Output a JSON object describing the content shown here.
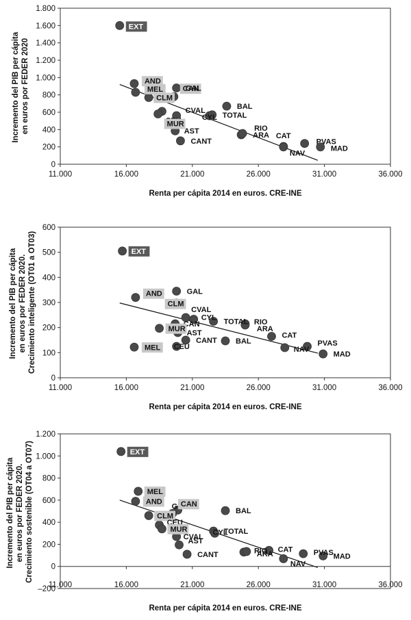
{
  "chart_data": [
    {
      "type": "scatter",
      "title": "",
      "xlabel": "Renta per cápita 2014 en euros. CRE-INE",
      "ylabel_lines": [
        "Incremento del PIB per cápita",
        "en euros por FEDER 2020"
      ],
      "xlim": [
        11000,
        36000
      ],
      "ylim": [
        0,
        1800
      ],
      "xticks": [
        11000,
        16000,
        21000,
        26000,
        31000,
        36000
      ],
      "xtick_labels": [
        "11.000",
        "16.000",
        "21.000",
        "26.000",
        "31.000",
        "36.000"
      ],
      "yticks": [
        0,
        200,
        400,
        600,
        800,
        1000,
        1200,
        1400,
        1600,
        1800
      ],
      "ytick_labels": [
        "0",
        "200",
        "400",
        "600",
        "800",
        "1.000",
        "1.200",
        "1.400",
        "1.600",
        "1.800"
      ],
      "trendline": {
        "x": [
          15500,
          30500
        ],
        "y": [
          920,
          45
        ]
      },
      "points": [
        {
          "label": "EXT",
          "x": 15500,
          "y": 1600,
          "style": "dark",
          "dx": 12,
          "dy": 1
        },
        {
          "label": "AND",
          "x": 16600,
          "y": 930,
          "style": "box",
          "dx": 14,
          "dy": -4
        },
        {
          "label": "MEL",
          "x": 16700,
          "y": 830,
          "style": "box",
          "dx": 16,
          "dy": -5
        },
        {
          "label": "CLM",
          "x": 17700,
          "y": 770,
          "style": "box",
          "dx": 10,
          "dy": 0
        },
        {
          "label": "CAN",
          "x": 19600,
          "y": 780,
          "style": "box",
          "dx": 12,
          "dy": -12
        },
        {
          "label": "GAL",
          "x": 19800,
          "y": 880,
          "style": "plain",
          "dx": 12,
          "dy": 0
        },
        {
          "label": "CEU",
          "x": 18700,
          "y": 610,
          "style": "plain",
          "dx": 4,
          "dy": 13
        },
        {
          "label": "CVAL",
          "x": 19800,
          "y": 560,
          "style": "plain",
          "dx": 12,
          "dy": -8
        },
        {
          "label": "MUR",
          "x": 18400,
          "y": 580,
          "style": "box",
          "dx": 12,
          "dy": 14
        },
        {
          "label": "CYL",
          "x": 22300,
          "y": 560,
          "style": "plain",
          "dx": -12,
          "dy": 2
        },
        {
          "label": "TOTAL",
          "x": 22500,
          "y": 570,
          "style": "plain",
          "dx": 14,
          "dy": 0
        },
        {
          "label": "BAL",
          "x": 23600,
          "y": 670,
          "style": "plain",
          "dx": 14,
          "dy": 0
        },
        {
          "label": "AST",
          "x": 19700,
          "y": 385,
          "style": "plain",
          "dx": 12,
          "dy": 0
        },
        {
          "label": "CANT",
          "x": 20100,
          "y": 270,
          "style": "plain",
          "dx": 14,
          "dy": 0
        },
        {
          "label": "ARA",
          "x": 24700,
          "y": 340,
          "style": "plain",
          "dx": 16,
          "dy": 0
        },
        {
          "label": "RIO",
          "x": 24800,
          "y": 355,
          "style": "plain",
          "dx": 16,
          "dy": -8
        },
        {
          "label": "CAT",
          "x": 27900,
          "y": 205,
          "style": "plain",
          "dx": -12,
          "dy": -16
        },
        {
          "label": "NAV",
          "x": 27900,
          "y": 200,
          "style": "plain",
          "dx": 8,
          "dy": 9
        },
        {
          "label": "PVAS",
          "x": 29500,
          "y": 240,
          "style": "plain",
          "dx": 16,
          "dy": -3
        },
        {
          "label": "MAD",
          "x": 30700,
          "y": 200,
          "style": "plain",
          "dx": 14,
          "dy": 2
        }
      ]
    },
    {
      "type": "scatter",
      "title": "",
      "xlabel": "Renta per cápita 2014 en euros. CRE-INE",
      "ylabel_lines": [
        "Incremento del PIB per cápita",
        "en euros por FEDER 2020.",
        "Crecimiento inteligente (OT01 a OT03)"
      ],
      "xlim": [
        11000,
        36000
      ],
      "ylim": [
        0,
        600
      ],
      "xticks": [
        11000,
        16000,
        21000,
        26000,
        31000,
        36000
      ],
      "xtick_labels": [
        "11.000",
        "16.000",
        "21.000",
        "26.000",
        "31.000",
        "36.000"
      ],
      "yticks": [
        0,
        100,
        200,
        300,
        400,
        500,
        600
      ],
      "ytick_labels": [
        "0",
        "100",
        "200",
        "300",
        "400",
        "500",
        "600"
      ],
      "trendline": {
        "x": [
          15500,
          30500
        ],
        "y": [
          298,
          98
        ]
      },
      "points": [
        {
          "label": "EXT",
          "x": 15700,
          "y": 505,
          "style": "dark",
          "dx": 12,
          "dy": 0
        },
        {
          "label": "AND",
          "x": 16700,
          "y": 320,
          "style": "box",
          "dx": 14,
          "dy": -6
        },
        {
          "label": "CLM",
          "x": 19800,
          "y": 298,
          "style": "box",
          "dx": -14,
          "dy": 1
        },
        {
          "label": "GAL",
          "x": 19800,
          "y": 345,
          "style": "plain",
          "dx": 14,
          "dy": 0
        },
        {
          "label": "CVAL",
          "x": 20500,
          "y": 240,
          "style": "plain",
          "dx": 7,
          "dy": -12
        },
        {
          "label": "CYL",
          "x": 21100,
          "y": 233,
          "style": "plain",
          "dx": 10,
          "dy": -3
        },
        {
          "label": "TOTAL",
          "x": 22600,
          "y": 225,
          "style": "plain",
          "dx": 14,
          "dy": 0
        },
        {
          "label": "RIO",
          "x": 25000,
          "y": 215,
          "style": "plain",
          "dx": 12,
          "dy": -3
        },
        {
          "label": "ARA",
          "x": 25000,
          "y": 210,
          "style": "plain",
          "dx": 16,
          "dy": 5
        },
        {
          "label": "CAN",
          "x": 19700,
          "y": 215,
          "style": "plain",
          "dx": 11,
          "dy": 0
        },
        {
          "label": "MUR",
          "x": 18500,
          "y": 197,
          "style": "box",
          "dx": 12,
          "dy": 0
        },
        {
          "label": "AST",
          "x": 19900,
          "y": 180,
          "style": "plain",
          "dx": 12,
          "dy": 0
        },
        {
          "label": "CANT",
          "x": 20500,
          "y": 150,
          "style": "plain",
          "dx": 14,
          "dy": 0
        },
        {
          "label": "BAL",
          "x": 23500,
          "y": 147,
          "style": "plain",
          "dx": 14,
          "dy": 0
        },
        {
          "label": "CAT",
          "x": 27000,
          "y": 165,
          "style": "plain",
          "dx": 14,
          "dy": -2
        },
        {
          "label": "MEL",
          "x": 16600,
          "y": 122,
          "style": "box",
          "dx": 14,
          "dy": 0
        },
        {
          "label": "CEU",
          "x": 19800,
          "y": 125,
          "style": "plain",
          "dx": -5,
          "dy": 0
        },
        {
          "label": "NAV",
          "x": 28000,
          "y": 120,
          "style": "plain",
          "dx": 12,
          "dy": 2
        },
        {
          "label": "PVAS",
          "x": 29700,
          "y": 125,
          "style": "plain",
          "dx": 14,
          "dy": -5
        },
        {
          "label": "MAD",
          "x": 30900,
          "y": 95,
          "style": "plain",
          "dx": 14,
          "dy": 0
        }
      ]
    },
    {
      "type": "scatter",
      "title": "",
      "xlabel": "Renta per cápita 2014 en euros. CRE-INE",
      "ylabel_lines": [
        "Incremento del PIB per cápita",
        "en euros por FEDER 2020.",
        "Crecimiento sostenible (OT04 a OT07)"
      ],
      "xlim": [
        11000,
        36000
      ],
      "ylim": [
        -200,
        1200
      ],
      "xticks": [
        11000,
        16000,
        21000,
        26000,
        31000,
        36000
      ],
      "xtick_labels": [
        "11.000",
        "16.000",
        "21.000",
        "26.000",
        "31.000",
        "36.000"
      ],
      "yticks": [
        -200,
        0,
        200,
        400,
        600,
        800,
        1000,
        1200
      ],
      "ytick_labels": [
        "–200",
        "0",
        "200",
        "400",
        "600",
        "800",
        "1.000",
        "1.200"
      ],
      "trendline": {
        "x": [
          15500,
          30500
        ],
        "y": [
          600,
          -10
        ]
      },
      "points": [
        {
          "label": "EXT",
          "x": 15600,
          "y": 1040,
          "style": "dark",
          "dx": 12,
          "dy": 0
        },
        {
          "label": "MEL",
          "x": 16900,
          "y": 680,
          "style": "box",
          "dx": 12,
          "dy": 0
        },
        {
          "label": "AND",
          "x": 16700,
          "y": 590,
          "style": "box",
          "dx": 14,
          "dy": 0
        },
        {
          "label": "GAL",
          "x": 19900,
          "y": 510,
          "style": "plain",
          "dx": -10,
          "dy": -6
        },
        {
          "label": "BAL",
          "x": 23500,
          "y": 505,
          "style": "plain",
          "dx": 14,
          "dy": 0
        },
        {
          "label": "CLM",
          "x": 17700,
          "y": 460,
          "style": "box",
          "dx": 11,
          "dy": 0
        },
        {
          "label": "CAN",
          "x": 19500,
          "y": 480,
          "style": "box",
          "dx": 11,
          "dy": -14
        },
        {
          "label": "CEU",
          "x": 18500,
          "y": 375,
          "style": "plain",
          "dx": 10,
          "dy": -4
        },
        {
          "label": "MUR",
          "x": 18700,
          "y": 340,
          "style": "box",
          "dx": 11,
          "dy": 0
        },
        {
          "label": "CVAL",
          "x": 19800,
          "y": 270,
          "style": "plain",
          "dx": 9,
          "dy": 0
        },
        {
          "label": "TOTAL",
          "x": 22600,
          "y": 320,
          "style": "plain",
          "dx": 14,
          "dy": 0
        },
        {
          "label": "CYL",
          "x": 22700,
          "y": 300,
          "style": "plain",
          "dx": -4,
          "dy": -2
        },
        {
          "label": "AST",
          "x": 20000,
          "y": 195,
          "style": "plain",
          "dx": 12,
          "dy": -6
        },
        {
          "label": "CANT",
          "x": 20600,
          "y": 110,
          "style": "plain",
          "dx": 14,
          "dy": 0
        },
        {
          "label": "RIO",
          "x": 24900,
          "y": 130,
          "style": "plain",
          "dx": 14,
          "dy": -2
        },
        {
          "label": "ARA",
          "x": 25100,
          "y": 135,
          "style": "plain",
          "dx": 14,
          "dy": 3
        },
        {
          "label": "CAT",
          "x": 26800,
          "y": 145,
          "style": "plain",
          "dx": 12,
          "dy": -2
        },
        {
          "label": "NAV",
          "x": 27900,
          "y": 70,
          "style": "plain",
          "dx": 9,
          "dy": 7
        },
        {
          "label": "PVAS",
          "x": 29400,
          "y": 115,
          "style": "plain",
          "dx": 14,
          "dy": -2
        },
        {
          "label": "MAD",
          "x": 30900,
          "y": 95,
          "style": "plain",
          "dx": 14,
          "dy": 0
        }
      ]
    }
  ]
}
